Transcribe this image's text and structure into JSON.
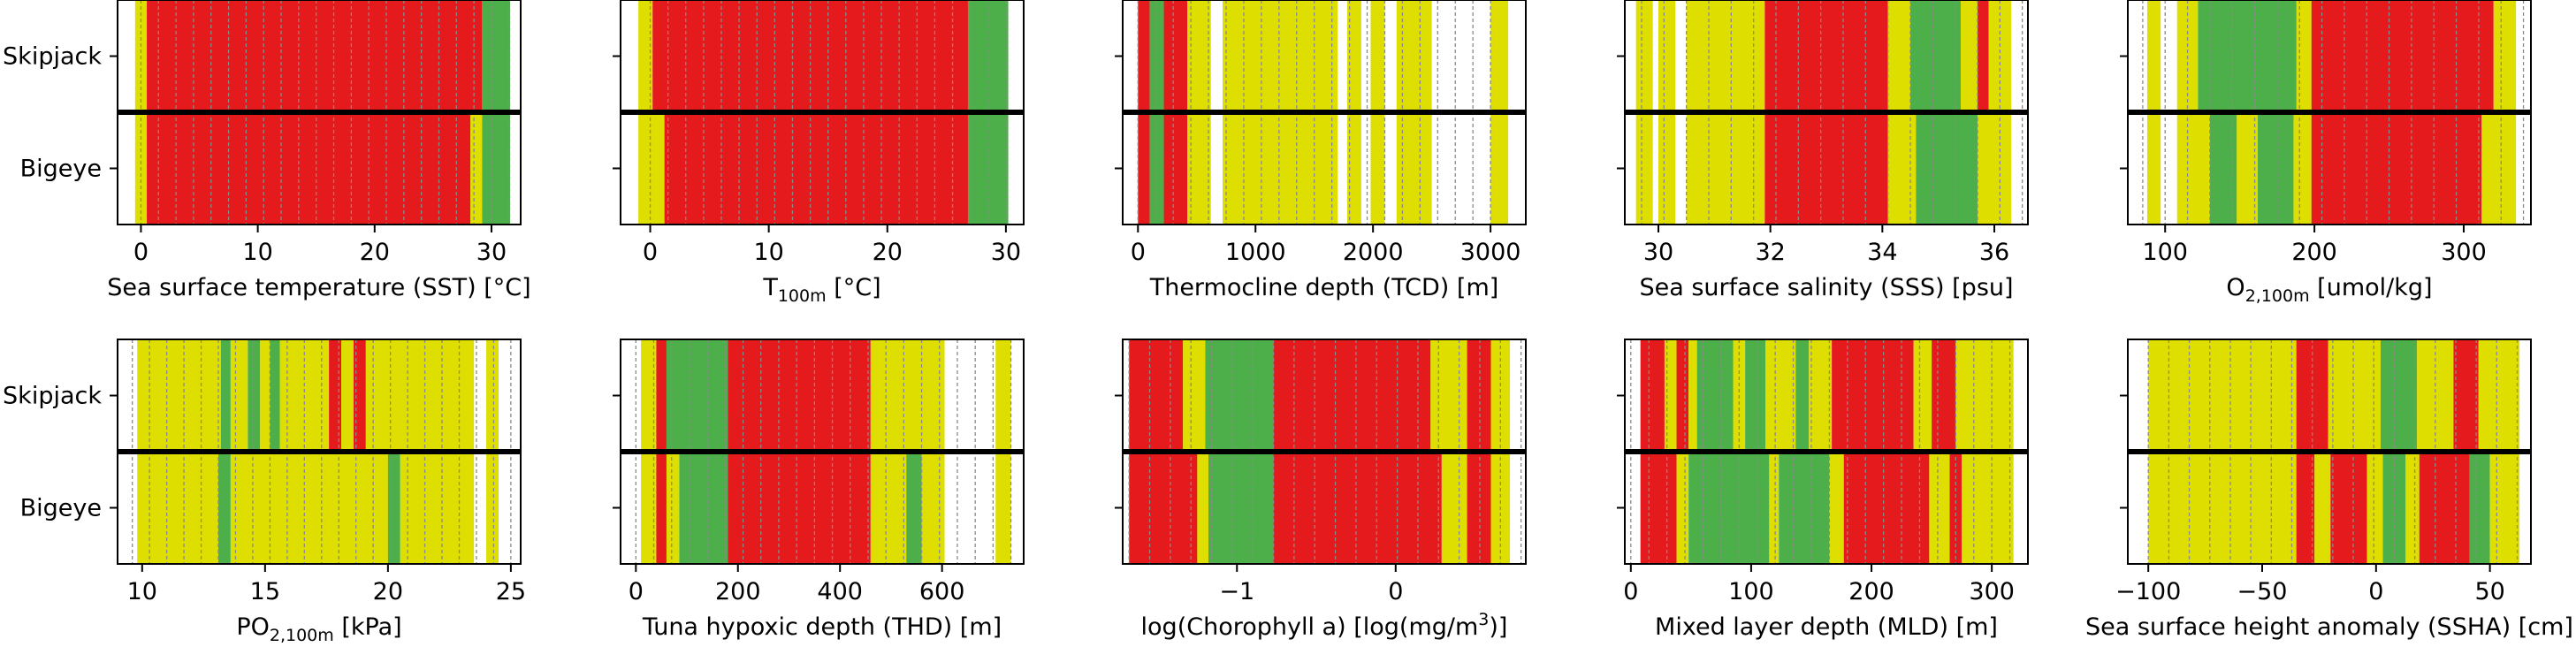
{
  "colors": {
    "red": "#e41a1c",
    "yellow": "#dede00",
    "green": "#4daf4a"
  },
  "row_labels": [
    "Skipjack",
    "Bigeye"
  ],
  "chart_data": [
    {
      "type": "bar",
      "xlabel": "Sea surface temperature (SST) [°C]",
      "xlim": [
        -2,
        32.5
      ],
      "ticks": [
        0,
        10,
        20,
        30
      ],
      "tick_labels": [
        "0",
        "10",
        "20",
        "30"
      ],
      "grid": [
        0,
        1.5,
        3,
        4.5,
        6,
        7.5,
        9,
        10.5,
        12,
        13.5,
        15,
        16.5,
        18,
        19.5,
        21,
        22.5,
        24,
        25.5,
        27,
        28.5,
        30,
        31.5
      ],
      "rows": {
        "Skipjack": [
          [
            -0.5,
            0.5,
            "yellow"
          ],
          [
            0.5,
            29.2,
            "red"
          ],
          [
            29.2,
            31.6,
            "green"
          ]
        ],
        "Bigeye": [
          [
            -0.5,
            0.5,
            "yellow"
          ],
          [
            0.5,
            28.2,
            "red"
          ],
          [
            28.2,
            29.2,
            "yellow"
          ],
          [
            29.2,
            31.6,
            "green"
          ]
        ]
      }
    },
    {
      "type": "bar",
      "xlabel": "T100m [°C]",
      "xlabel_main": "T",
      "xlabel_sub": "100m",
      "xlabel_rest": " [°C]",
      "xlim": [
        -2.5,
        31.5
      ],
      "ticks": [
        0,
        10,
        20,
        30
      ],
      "tick_labels": [
        "0",
        "10",
        "20",
        "30"
      ],
      "grid": [
        0,
        1.5,
        3,
        4.5,
        6,
        7.5,
        9,
        10.5,
        12,
        13.5,
        15,
        16.5,
        18,
        19.5,
        21,
        22.5,
        24,
        25.5,
        27,
        28.5,
        30
      ],
      "rows": {
        "Skipjack": [
          [
            -1,
            0.2,
            "yellow"
          ],
          [
            0.2,
            26.8,
            "red"
          ],
          [
            26.8,
            30.2,
            "green"
          ]
        ],
        "Bigeye": [
          [
            -1,
            1.2,
            "yellow"
          ],
          [
            1.2,
            26.8,
            "red"
          ],
          [
            26.8,
            30.2,
            "green"
          ]
        ]
      }
    },
    {
      "type": "bar",
      "xlabel": "Thermocline depth (TCD) [m]",
      "xlim": [
        -130,
        3300
      ],
      "ticks": [
        0,
        1000,
        2000,
        3000
      ],
      "tick_labels": [
        "0",
        "1000",
        "2000",
        "3000"
      ],
      "grid": [
        0,
        150,
        300,
        450,
        600,
        750,
        900,
        1050,
        1200,
        1350,
        1500,
        1650,
        1800,
        1950,
        2100,
        2250,
        2400,
        2550,
        2700,
        2850,
        3000
      ],
      "rows": {
        "Skipjack": [
          [
            0,
            100,
            "red"
          ],
          [
            100,
            220,
            "green"
          ],
          [
            220,
            420,
            "red"
          ],
          [
            420,
            620,
            "yellow"
          ],
          [
            720,
            1700,
            "yellow"
          ],
          [
            1780,
            1900,
            "yellow"
          ],
          [
            1980,
            2100,
            "yellow"
          ],
          [
            2200,
            2500,
            "yellow"
          ],
          [
            3000,
            3150,
            "yellow"
          ]
        ],
        "Bigeye": [
          [
            0,
            100,
            "red"
          ],
          [
            100,
            220,
            "green"
          ],
          [
            220,
            420,
            "red"
          ],
          [
            420,
            620,
            "yellow"
          ],
          [
            720,
            1700,
            "yellow"
          ],
          [
            1780,
            1900,
            "yellow"
          ],
          [
            1980,
            2100,
            "yellow"
          ],
          [
            2200,
            2500,
            "yellow"
          ],
          [
            3000,
            3150,
            "yellow"
          ]
        ]
      }
    },
    {
      "type": "bar",
      "xlabel": "Sea surface salinity (SSS) [psu]",
      "xlim": [
        29.4,
        36.6
      ],
      "ticks": [
        30,
        32,
        34,
        36
      ],
      "tick_labels": [
        "30",
        "32",
        "34",
        "36"
      ],
      "grid": [
        29.7,
        30.1,
        30.5,
        30.9,
        31.3,
        31.7,
        32.1,
        32.5,
        32.9,
        33.3,
        33.7,
        34.1,
        34.5,
        34.9,
        35.3,
        35.7,
        36.1,
        36.5
      ],
      "rows": {
        "Skipjack": [
          [
            29.6,
            29.9,
            "yellow"
          ],
          [
            30.0,
            30.3,
            "yellow"
          ],
          [
            30.5,
            31.9,
            "yellow"
          ],
          [
            31.9,
            34.1,
            "red"
          ],
          [
            34.1,
            34.5,
            "yellow"
          ],
          [
            34.5,
            35.4,
            "green"
          ],
          [
            35.4,
            35.7,
            "yellow"
          ],
          [
            35.7,
            35.9,
            "red"
          ],
          [
            35.9,
            36.3,
            "yellow"
          ]
        ],
        "Bigeye": [
          [
            29.6,
            29.9,
            "yellow"
          ],
          [
            30.0,
            30.3,
            "yellow"
          ],
          [
            30.5,
            31.9,
            "yellow"
          ],
          [
            31.9,
            34.1,
            "red"
          ],
          [
            34.1,
            34.6,
            "yellow"
          ],
          [
            34.6,
            35.7,
            "green"
          ],
          [
            35.7,
            36.3,
            "yellow"
          ]
        ]
      }
    },
    {
      "type": "bar",
      "xlabel": "O2,100m [umol/kg]",
      "xlabel_main": "O",
      "xlabel_sub": "2,100m",
      "xlabel_rest": " [umol/kg]",
      "xlim": [
        75,
        345
      ],
      "ticks": [
        100,
        200,
        300
      ],
      "tick_labels": [
        "100",
        "200",
        "300"
      ],
      "grid": [
        85,
        100,
        115,
        130,
        145,
        160,
        175,
        190,
        205,
        220,
        235,
        250,
        265,
        280,
        295,
        310,
        325,
        340
      ],
      "rows": {
        "Skipjack": [
          [
            88,
            97,
            "yellow"
          ],
          [
            108,
            122,
            "yellow"
          ],
          [
            122,
            188,
            "green"
          ],
          [
            188,
            198,
            "yellow"
          ],
          [
            198,
            320,
            "red"
          ],
          [
            320,
            335,
            "yellow"
          ]
        ],
        "Bigeye": [
          [
            88,
            97,
            "yellow"
          ],
          [
            108,
            130,
            "yellow"
          ],
          [
            130,
            148,
            "green"
          ],
          [
            148,
            162,
            "yellow"
          ],
          [
            162,
            186,
            "green"
          ],
          [
            186,
            198,
            "yellow"
          ],
          [
            198,
            312,
            "red"
          ],
          [
            312,
            335,
            "yellow"
          ]
        ]
      }
    },
    {
      "type": "bar",
      "xlabel": "PO2,100m [kPa]",
      "xlabel_main": "PO",
      "xlabel_sub": "2,100m",
      "xlabel_rest": " [kPa]",
      "xlim": [
        9,
        25.4
      ],
      "ticks": [
        10,
        15,
        20,
        25
      ],
      "tick_labels": [
        "10",
        "15",
        "20",
        "25"
      ],
      "grid": [
        9.6,
        10.3,
        11,
        11.7,
        12.4,
        13.1,
        13.8,
        14.5,
        15.2,
        15.9,
        16.6,
        17.3,
        18,
        18.7,
        19.4,
        20.1,
        20.8,
        21.5,
        22.2,
        22.9,
        23.6,
        24.3,
        25
      ],
      "rows": {
        "Skipjack": [
          [
            9.8,
            13.2,
            "yellow"
          ],
          [
            13.2,
            13.6,
            "green"
          ],
          [
            13.6,
            14.3,
            "yellow"
          ],
          [
            14.3,
            14.8,
            "green"
          ],
          [
            14.8,
            15.2,
            "yellow"
          ],
          [
            15.2,
            15.6,
            "green"
          ],
          [
            15.6,
            17.6,
            "yellow"
          ],
          [
            17.6,
            18.1,
            "red"
          ],
          [
            18.1,
            18.6,
            "yellow"
          ],
          [
            18.6,
            19.1,
            "red"
          ],
          [
            19.1,
            23.5,
            "yellow"
          ],
          [
            24.0,
            24.5,
            "yellow"
          ]
        ],
        "Bigeye": [
          [
            9.8,
            13.1,
            "yellow"
          ],
          [
            13.1,
            13.6,
            "green"
          ],
          [
            13.6,
            20.0,
            "yellow"
          ],
          [
            20.0,
            20.5,
            "green"
          ],
          [
            20.5,
            23.5,
            "yellow"
          ],
          [
            24.0,
            24.5,
            "yellow"
          ]
        ]
      }
    },
    {
      "type": "bar",
      "xlabel": "Tuna hypoxic depth (THD) [m]",
      "xlim": [
        -30,
        760
      ],
      "ticks": [
        0,
        200,
        400,
        600
      ],
      "tick_labels": [
        "0",
        "200",
        "400",
        "600"
      ],
      "grid": [
        0,
        35,
        70,
        105,
        140,
        175,
        210,
        245,
        280,
        315,
        350,
        385,
        420,
        455,
        490,
        525,
        560,
        595,
        630,
        665,
        700,
        735
      ],
      "rows": {
        "Skipjack": [
          [
            10,
            40,
            "yellow"
          ],
          [
            40,
            60,
            "red"
          ],
          [
            60,
            180,
            "green"
          ],
          [
            180,
            460,
            "red"
          ],
          [
            460,
            605,
            "yellow"
          ],
          [
            705,
            735,
            "yellow"
          ]
        ],
        "Bigeye": [
          [
            10,
            40,
            "yellow"
          ],
          [
            40,
            60,
            "red"
          ],
          [
            60,
            85,
            "yellow"
          ],
          [
            85,
            180,
            "green"
          ],
          [
            180,
            460,
            "red"
          ],
          [
            460,
            530,
            "yellow"
          ],
          [
            530,
            560,
            "green"
          ],
          [
            560,
            605,
            "yellow"
          ],
          [
            705,
            735,
            "yellow"
          ]
        ]
      }
    },
    {
      "type": "bar",
      "xlabel": "log(Chorophyll a) [log(mg/m3)]",
      "xlabel_main": "log(Chorophyll a) [log(mg/m",
      "xlabel_sup": "3",
      "xlabel_rest": ")]",
      "xlim": [
        -1.72,
        0.82
      ],
      "ticks": [
        -1,
        0
      ],
      "tick_labels": [
        "−1",
        "0"
      ],
      "grid": [
        -1.68,
        -1.55,
        -1.42,
        -1.29,
        -1.16,
        -1.03,
        -0.9,
        -0.77,
        -0.64,
        -0.51,
        -0.38,
        -0.25,
        -0.12,
        0.01,
        0.14,
        0.27,
        0.4,
        0.53,
        0.66,
        0.79
      ],
      "rows": {
        "Skipjack": [
          [
            -1.68,
            -1.34,
            "red"
          ],
          [
            -1.34,
            -1.2,
            "yellow"
          ],
          [
            -1.2,
            -0.77,
            "green"
          ],
          [
            -0.77,
            0.22,
            "red"
          ],
          [
            0.22,
            0.45,
            "yellow"
          ],
          [
            0.45,
            0.6,
            "red"
          ],
          [
            0.6,
            0.72,
            "yellow"
          ]
        ],
        "Bigeye": [
          [
            -1.68,
            -1.25,
            "red"
          ],
          [
            -1.25,
            -1.18,
            "yellow"
          ],
          [
            -1.18,
            -0.77,
            "green"
          ],
          [
            -0.77,
            0.29,
            "red"
          ],
          [
            0.29,
            0.45,
            "yellow"
          ],
          [
            0.45,
            0.6,
            "red"
          ],
          [
            0.6,
            0.72,
            "yellow"
          ]
        ]
      }
    },
    {
      "type": "bar",
      "xlabel": "Mixed layer depth (MLD) [m]",
      "xlim": [
        -5,
        330
      ],
      "ticks": [
        0,
        100,
        200,
        300
      ],
      "tick_labels": [
        "0",
        "100",
        "200",
        "300"
      ],
      "grid": [
        0,
        15,
        30,
        45,
        60,
        75,
        90,
        105,
        120,
        135,
        150,
        165,
        180,
        195,
        210,
        225,
        240,
        255,
        270,
        285,
        300,
        315
      ],
      "rows": {
        "Skipjack": [
          [
            8,
            28,
            "red"
          ],
          [
            28,
            38,
            "yellow"
          ],
          [
            38,
            48,
            "red"
          ],
          [
            48,
            55,
            "yellow"
          ],
          [
            55,
            85,
            "green"
          ],
          [
            85,
            95,
            "yellow"
          ],
          [
            95,
            112,
            "green"
          ],
          [
            112,
            137,
            "yellow"
          ],
          [
            137,
            148,
            "green"
          ],
          [
            148,
            167,
            "yellow"
          ],
          [
            167,
            235,
            "red"
          ],
          [
            235,
            250,
            "yellow"
          ],
          [
            250,
            270,
            "red"
          ],
          [
            270,
            318,
            "yellow"
          ]
        ],
        "Bigeye": [
          [
            8,
            38,
            "red"
          ],
          [
            38,
            48,
            "yellow"
          ],
          [
            48,
            115,
            "green"
          ],
          [
            115,
            123,
            "yellow"
          ],
          [
            123,
            165,
            "green"
          ],
          [
            165,
            177,
            "yellow"
          ],
          [
            177,
            248,
            "red"
          ],
          [
            248,
            265,
            "yellow"
          ],
          [
            265,
            275,
            "red"
          ],
          [
            275,
            318,
            "yellow"
          ]
        ]
      }
    },
    {
      "type": "bar",
      "xlabel": "Sea surface height anomaly (SSHA) [cm]",
      "xlim": [
        -109,
        68
      ],
      "ticks": [
        -100,
        -50,
        0,
        50
      ],
      "tick_labels": [
        "−100",
        "−50",
        "0",
        "50"
      ],
      "grid": [
        -100,
        -91,
        -82,
        -73,
        -64,
        -55,
        -46,
        -37,
        -28,
        -19,
        -10,
        -1,
        8,
        17,
        26,
        35,
        44,
        53,
        62
      ],
      "rows": {
        "Skipjack": [
          [
            -100,
            -35,
            "yellow"
          ],
          [
            -35,
            -21,
            "red"
          ],
          [
            -21,
            2,
            "yellow"
          ],
          [
            2,
            18,
            "green"
          ],
          [
            18,
            34,
            "yellow"
          ],
          [
            34,
            45,
            "red"
          ],
          [
            45,
            63,
            "yellow"
          ]
        ],
        "Bigeye": [
          [
            -100,
            -35,
            "yellow"
          ],
          [
            -35,
            -27,
            "red"
          ],
          [
            -27,
            -20,
            "yellow"
          ],
          [
            -20,
            -4,
            "red"
          ],
          [
            -4,
            3,
            "yellow"
          ],
          [
            3,
            13,
            "green"
          ],
          [
            13,
            19,
            "yellow"
          ],
          [
            19,
            41,
            "red"
          ],
          [
            41,
            50,
            "green"
          ],
          [
            50,
            63,
            "yellow"
          ]
        ]
      }
    }
  ]
}
